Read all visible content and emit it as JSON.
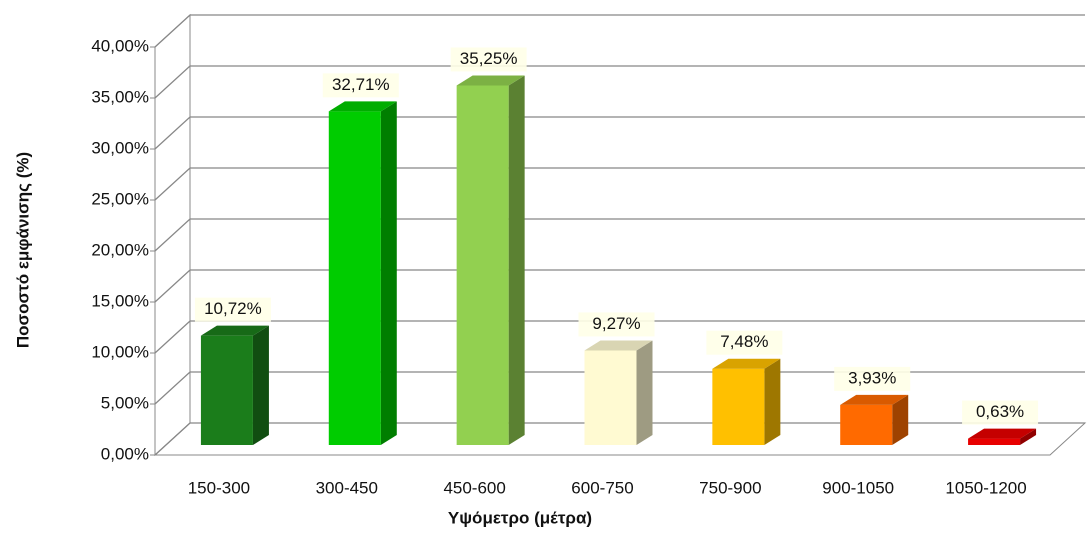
{
  "chart_data": {
    "type": "bar3d",
    "categories": [
      "150-300",
      "300-450",
      "450-600",
      "600-750",
      "750-900",
      "900-1050",
      "1050-1200"
    ],
    "values": [
      10.72,
      32.71,
      35.25,
      9.27,
      7.48,
      3.93,
      0.63
    ],
    "value_labels": [
      "10,72%",
      "32,71%",
      "35,25%",
      "9,27%",
      "7,48%",
      "3,93%",
      "0,63%"
    ],
    "colors": [
      "#1b7d1b",
      "#00cc00",
      "#92d050",
      "#fffad2",
      "#ffc000",
      "#ff6a00",
      "#e80000"
    ],
    "ylim": [
      0,
      40
    ],
    "yticks": [
      {
        "value": 0,
        "label": "0,00%"
      },
      {
        "value": 5,
        "label": "5,00%"
      },
      {
        "value": 10,
        "label": "10,00%"
      },
      {
        "value": 15,
        "label": "15,00%"
      },
      {
        "value": 20,
        "label": "20,00%"
      },
      {
        "value": 25,
        "label": "25,00%"
      },
      {
        "value": 30,
        "label": "30,00%"
      },
      {
        "value": 35,
        "label": "35,00%"
      },
      {
        "value": 40,
        "label": "40,00%"
      }
    ],
    "ylabel": "Ποσοστό εμφάνισης (%)",
    "xlabel": "Υψόμετρο (μέτρα)",
    "grid": true
  }
}
